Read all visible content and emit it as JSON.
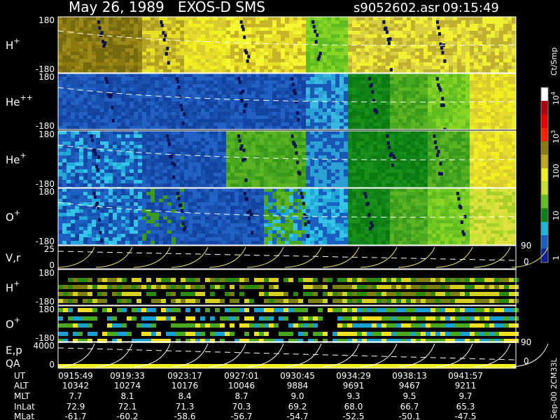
{
  "header": {
    "title": "May 26, 1989   EXOS-D SMS",
    "file": "s9052602.asr",
    "time": "09:15:49"
  },
  "panels": [
    {
      "label": "H",
      "sup": "+",
      "top": "180",
      "bottom": "-180"
    },
    {
      "label": "He",
      "sup": "++",
      "top": "180",
      "bottom": "-180"
    },
    {
      "label": "He",
      "sup": "+",
      "top": "180",
      "bottom": "-180"
    },
    {
      "label": "O",
      "sup": "+",
      "top": "180",
      "bottom": "-180"
    },
    {
      "label": "V,r",
      "top": "25",
      "bottom": "0",
      "right_top": "90",
      "right_bottom": "0"
    },
    {
      "label": "H",
      "sup": "+",
      "top": "180",
      "bottom": "-180"
    },
    {
      "label": "O",
      "sup": "+",
      "top": "180",
      "bottom": "-180"
    },
    {
      "label": "E,p",
      "label2": "QA",
      "top": "4000",
      "bottom": "0",
      "right_top": "90",
      "right_bottom": "0"
    }
  ],
  "colorbar": {
    "unit": "Ct/Smp",
    "labels": [
      {
        "base": "10",
        "sup": "4"
      },
      {
        "base": "10",
        "sup": "3"
      },
      {
        "base": "100"
      },
      {
        "base": "10"
      },
      {
        "base": "1"
      }
    ]
  },
  "note": "Sep-00  2CM33L",
  "table": {
    "rows": [
      [
        "UT",
        "0915:49",
        "0919:33",
        "0923:17",
        "0927:01",
        "0930:45",
        "0934:29",
        "0938:13",
        "0941:57"
      ],
      [
        "ALT",
        "10342",
        "10274",
        "10176",
        "10046",
        "9884",
        "9691",
        "9467",
        "9211"
      ],
      [
        "MLT",
        "7.7",
        "8.1",
        "8.4",
        "8.7",
        "9.0",
        "9.3",
        "9.5",
        "9.7"
      ],
      [
        "InLat",
        "72.9",
        "72.1",
        "71.3",
        "70.3",
        "69.2",
        "68.0",
        "66.7",
        "65.3"
      ],
      [
        "MLat",
        "-61.7",
        "-60.2",
        "-58.6",
        "-56.7",
        "-54.7",
        "-52.5",
        "-50.1",
        "-47.5"
      ]
    ]
  }
}
